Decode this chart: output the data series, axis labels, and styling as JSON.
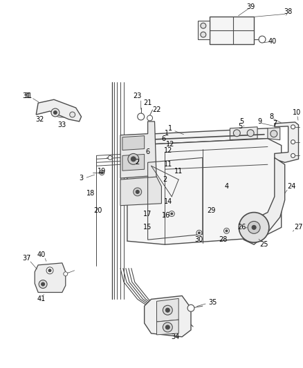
{
  "background_color": "#ffffff",
  "line_color": "#4a4a4a",
  "label_color": "#000000",
  "figsize": [
    4.38,
    5.33
  ],
  "dpi": 100,
  "font_size": 7.0
}
